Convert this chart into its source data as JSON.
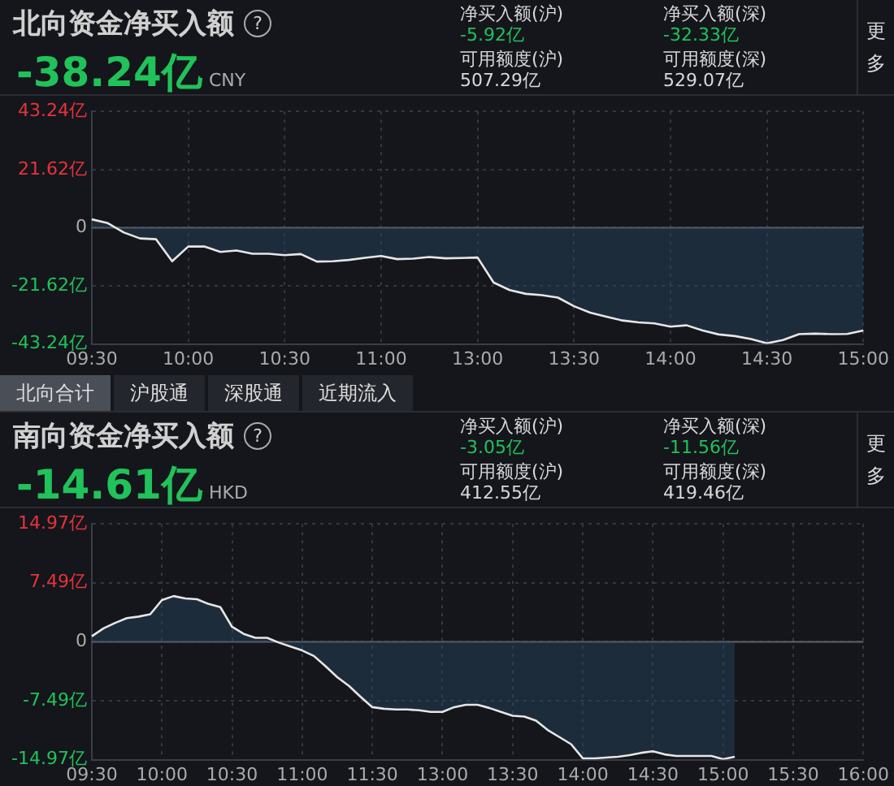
{
  "chart_data": [
    {
      "type": "area",
      "title": "北向资金净买入额",
      "subtitle": "-38.24亿",
      "annotations": [
        "CNY",
        "?",
        "净买入额(沪)",
        "-5.92亿",
        "净买入额(深)",
        "-32.33亿",
        "可用额度(沪)",
        "507.29亿",
        "可用额度(深)",
        "529.07亿",
        "更多",
        "北向合计",
        "沪股通",
        "深股通",
        "近期流入"
      ],
      "categories": [
        "09:30",
        null,
        null,
        null,
        null,
        null,
        "10:00",
        null,
        null,
        null,
        null,
        null,
        "10:30",
        null,
        null,
        null,
        null,
        null,
        "11:00",
        null,
        null,
        null,
        null,
        null,
        "13:00",
        null,
        null,
        null,
        null,
        null,
        "13:30",
        null,
        null,
        null,
        null,
        null,
        "14:00",
        null,
        null,
        null,
        null,
        null,
        "14:30",
        null,
        null,
        null,
        null,
        null,
        "15:00"
      ],
      "series": [
        {
          "color": "#e6e6e6",
          "values": [
            3.1,
            1.7,
            -1.8,
            -4.0,
            -4.3,
            -12.5,
            -7.0,
            -7.0,
            -9.0,
            -8.5,
            -9.7,
            -9.7,
            -10.2,
            -9.8,
            -12.6,
            -12.5,
            -12.0,
            -11.2,
            -10.5,
            -11.7,
            -11.5,
            -10.9,
            -11.4,
            -11.3,
            -11.1,
            -20.4,
            -23.2,
            -24.6,
            -25.1,
            -26.0,
            -29.2,
            -31.6,
            -33.1,
            -34.5,
            -35.2,
            -35.6,
            -36.8,
            -36.3,
            -38.2,
            -39.7,
            -40.3,
            -41.4,
            -43.0,
            -41.8,
            -39.6,
            -39.4,
            -39.6,
            -39.5,
            -38.2
          ]
        }
      ],
      "ylim": [
        -43.24,
        43.24
      ],
      "yticks": [
        {
          "value": -43.24,
          "label": "-43.24亿"
        },
        {
          "value": -21.62,
          "label": "-21.62亿"
        },
        0,
        {
          "value": 21.62,
          "label": "21.62亿"
        },
        {
          "value": 43.24,
          "label": "43.24亿"
        }
      ],
      "ref_lines": [
        {
          "axis": "y",
          "value": 0,
          "color": "#5f6269"
        }
      ],
      "grid": true,
      "marker": "none"
    },
    {
      "type": "area",
      "title": "南向资金净买入额",
      "subtitle": "-14.61亿",
      "annotations": [
        "HKD",
        "?",
        "净买入额(沪)",
        "-3.05亿",
        "净买入额(深)",
        "-11.56亿",
        "可用额度(沪)",
        "412.55亿",
        "可用额度(深)",
        "419.46亿",
        "更多"
      ],
      "categories": [
        "09:30",
        null,
        null,
        null,
        null,
        null,
        "10:00",
        null,
        null,
        null,
        null,
        null,
        "10:30",
        null,
        null,
        null,
        null,
        null,
        "11:00",
        null,
        null,
        null,
        null,
        null,
        "11:30",
        null,
        null,
        null,
        null,
        null,
        "13:00",
        null,
        null,
        null,
        null,
        null,
        "13:30",
        null,
        null,
        null,
        null,
        null,
        "14:00",
        null,
        null,
        null,
        null,
        null,
        "14:30",
        null,
        null,
        null,
        null,
        null,
        "15:00",
        null,
        null,
        null,
        null,
        null,
        "15:30",
        null,
        null,
        null,
        null,
        null,
        "16:00"
      ],
      "series": [
        {
          "color": "#e6e6e6",
          "values": [
            0.7,
            1.7,
            2.4,
            3.0,
            3.2,
            3.5,
            5.3,
            5.8,
            5.5,
            5.4,
            4.8,
            4.4,
            1.9,
            1.0,
            0.5,
            0.5,
            -0.1,
            -0.6,
            -1.1,
            -1.8,
            -3.1,
            -4.5,
            -5.6,
            -7.0,
            -8.3,
            -8.5,
            -8.6,
            -8.6,
            -8.7,
            -8.9,
            -8.9,
            -8.3,
            -8.0,
            -8.0,
            -8.4,
            -8.9,
            -9.4,
            -9.5,
            -10.0,
            -11.2,
            -12.1,
            -13.0,
            -14.8,
            -14.8,
            -14.7,
            -14.6,
            -14.4,
            -14.1,
            -13.9,
            -14.3,
            -14.5,
            -14.5,
            -14.5,
            -14.5,
            -14.9,
            -14.6,
            null,
            null,
            null,
            null,
            null,
            null,
            null,
            null,
            null,
            null,
            null
          ]
        }
      ],
      "ylim": [
        -14.97,
        14.97
      ],
      "yticks": [
        {
          "value": -14.97,
          "label": "-14.97亿"
        },
        {
          "value": -7.49,
          "label": "-7.49亿"
        },
        0,
        {
          "value": 7.49,
          "label": "7.49亿"
        },
        {
          "value": 14.97,
          "label": "14.97亿"
        }
      ],
      "ref_lines": [
        {
          "axis": "y",
          "value": 0,
          "color": "#5f6269"
        }
      ],
      "grid": true,
      "marker": "none"
    }
  ]
}
